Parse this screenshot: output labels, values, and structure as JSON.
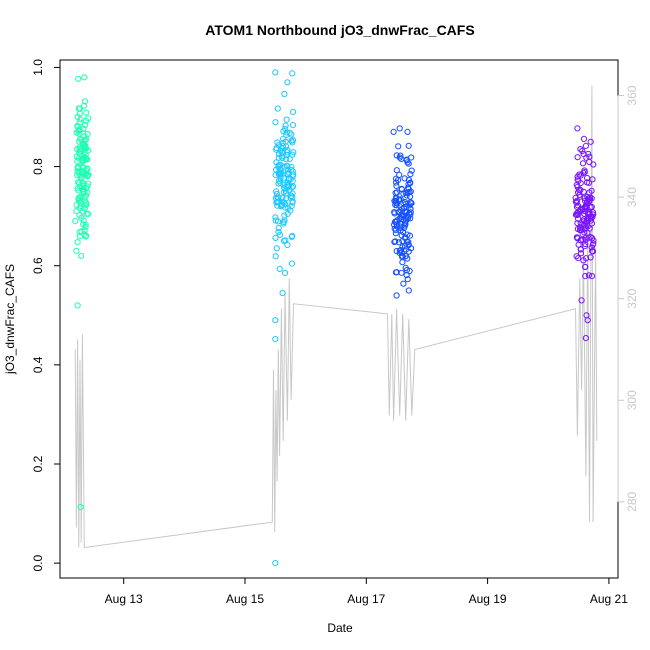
{
  "chart_data": {
    "type": "scatter",
    "title": "ATOM1 Northbound jO3_dnwFrac_CAFS",
    "xlabel": "Date",
    "ylabel": "jO3_dnwFrac_CAFS",
    "x_ticks": [
      "Aug 13",
      "Aug 15",
      "Aug 17",
      "Aug 19",
      "Aug 21"
    ],
    "x_tick_days": [
      13,
      15,
      17,
      19,
      21
    ],
    "xlim": [
      11.95,
      21.15
    ],
    "ylim": [
      -0.03,
      1.015
    ],
    "y_ticks": [
      0.0,
      0.2,
      0.4,
      0.6,
      0.8,
      1.0
    ],
    "y2lim": [
      265,
      367
    ],
    "y2_ticks": [
      280,
      300,
      320,
      340,
      360
    ],
    "series": [
      {
        "color": "#1effb4",
        "cluster": {
          "x_center": 12.32,
          "x_spread": 0.1,
          "y_low": 0.6,
          "y_high": 0.98
        },
        "points": [
          [
            12.25,
            0.977
          ],
          [
            12.35,
            0.98
          ],
          [
            12.22,
            0.63
          ],
          [
            12.3,
            0.62
          ],
          [
            12.24,
            0.52
          ],
          [
            12.29,
            0.113
          ],
          [
            12.2,
            0.69
          ]
        ]
      },
      {
        "color": "#1ec8ff",
        "cluster": {
          "x_center": 15.65,
          "x_spread": 0.15,
          "y_low": 0.55,
          "y_high": 0.99
        },
        "points": [
          [
            15.5,
            0.99
          ],
          [
            15.78,
            0.988
          ],
          [
            15.5,
            0.49
          ],
          [
            15.5,
            0.452
          ],
          [
            15.5,
            0.0
          ],
          [
            15.62,
            0.545
          ],
          [
            15.7,
            0.97
          ]
        ]
      },
      {
        "color": "#1450ff",
        "cluster": {
          "x_center": 17.6,
          "x_spread": 0.15,
          "y_low": 0.54,
          "y_high": 0.88
        },
        "points": [
          [
            17.45,
            0.87
          ],
          [
            17.55,
            0.877
          ],
          [
            17.68,
            0.87
          ],
          [
            17.5,
            0.54
          ],
          [
            17.7,
            0.55
          ]
        ]
      },
      {
        "color": "#7814ff",
        "cluster": {
          "x_center": 20.6,
          "x_spread": 0.15,
          "y_low": 0.53,
          "y_high": 0.88
        },
        "points": [
          [
            20.48,
            0.877
          ],
          [
            20.63,
            0.5
          ],
          [
            20.65,
            0.49
          ],
          [
            20.62,
            0.454
          ],
          [
            20.7,
            0.85
          ],
          [
            20.55,
            0.53
          ]
        ]
      }
    ],
    "secondary_line": {
      "color": "#c8c8c8",
      "path": [
        [
          12.2,
          310
        ],
        [
          12.22,
          275
        ],
        [
          12.24,
          312
        ],
        [
          12.26,
          271
        ],
        [
          12.28,
          308
        ],
        [
          12.3,
          272
        ],
        [
          12.32,
          313
        ],
        [
          12.35,
          271
        ],
        [
          15.45,
          276
        ],
        [
          15.47,
          306
        ],
        [
          15.49,
          274
        ],
        [
          15.51,
          302
        ],
        [
          15.53,
          284
        ],
        [
          15.55,
          310
        ],
        [
          15.57,
          289
        ],
        [
          15.6,
          318
        ],
        [
          15.63,
          292
        ],
        [
          15.66,
          321
        ],
        [
          15.7,
          296
        ],
        [
          15.73,
          324
        ],
        [
          15.76,
          300
        ],
        [
          15.8,
          319
        ],
        [
          17.35,
          317
        ],
        [
          17.38,
          297
        ],
        [
          17.42,
          317
        ],
        [
          17.45,
          296
        ],
        [
          17.5,
          318
        ],
        [
          17.55,
          297
        ],
        [
          17.6,
          317
        ],
        [
          17.65,
          296
        ],
        [
          17.7,
          316
        ],
        [
          17.75,
          297
        ],
        [
          17.8,
          310
        ],
        [
          20.45,
          318
        ],
        [
          20.48,
          293
        ],
        [
          20.52,
          324
        ],
        [
          20.55,
          302
        ],
        [
          20.58,
          330
        ],
        [
          20.62,
          285
        ],
        [
          20.65,
          334
        ],
        [
          20.68,
          276
        ],
        [
          20.72,
          362
        ],
        [
          20.74,
          276
        ],
        [
          20.78,
          330
        ],
        [
          20.8,
          292
        ]
      ]
    }
  }
}
